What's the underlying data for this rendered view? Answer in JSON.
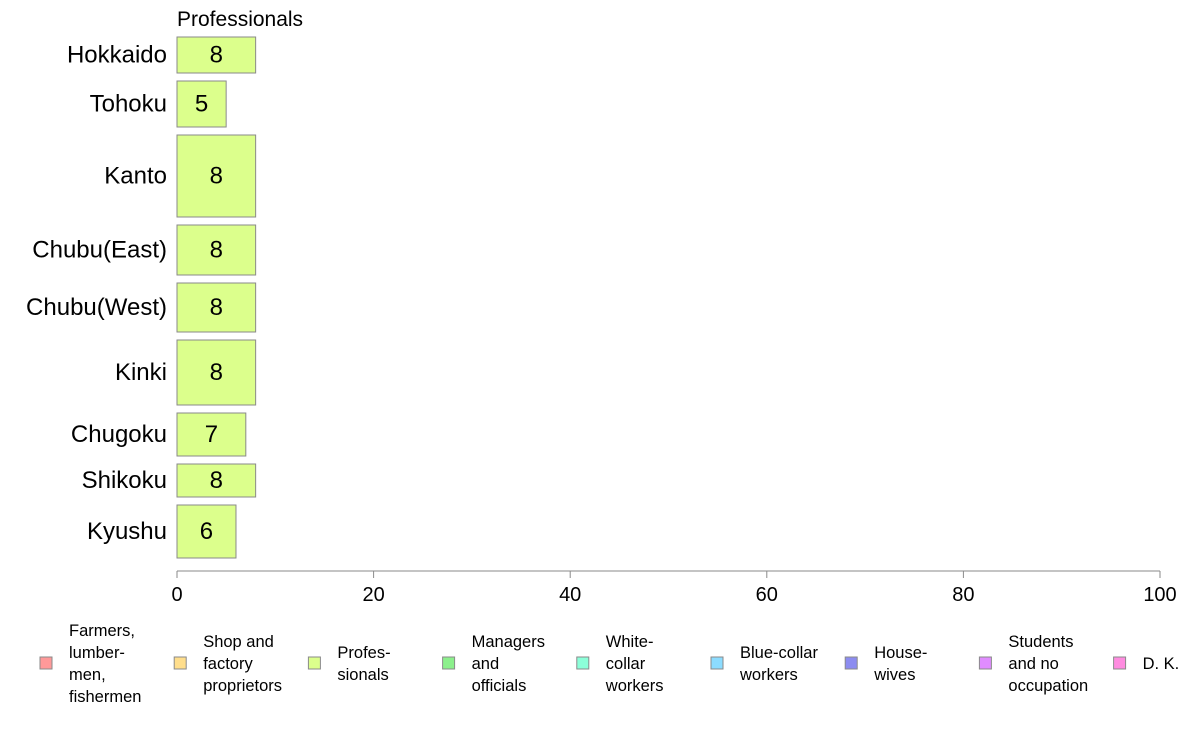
{
  "chart_data": {
    "type": "bar",
    "orientation": "horizontal",
    "title": "Professionals",
    "categories": [
      "Hokkaido",
      "Tohoku",
      "Kanto",
      "Chubu(East)",
      "Chubu(West)",
      "Kinki",
      "Chugoku",
      "Shikoku",
      "Kyushu"
    ],
    "values": [
      8,
      5,
      8,
      8,
      8,
      8,
      7,
      8,
      6
    ],
    "labels": [
      "8",
      "5",
      "8",
      "8",
      "8",
      "8",
      "7",
      "8",
      "6"
    ],
    "xlim": [
      0,
      100
    ],
    "xticks": [
      0,
      20,
      40,
      60,
      80,
      100
    ],
    "xtick_labels": [
      "0",
      "20",
      "40",
      "60",
      "80",
      "100"
    ],
    "bar_color": "#dcff8c",
    "grid": false,
    "legend_position": "bottom",
    "legend": [
      {
        "lines": [
          "Farmers,",
          "lumber-",
          "men,",
          "fishermen"
        ],
        "color": "#ff9999"
      },
      {
        "lines": [
          "Shop and",
          "factory",
          "proprietors"
        ],
        "color": "#ffde8c"
      },
      {
        "lines": [
          "Profes-",
          "sionals"
        ],
        "color": "#dcff8c"
      },
      {
        "lines": [
          "Managers",
          "and",
          "officials"
        ],
        "color": "#8cf08c"
      },
      {
        "lines": [
          "White-",
          "collar",
          "workers"
        ],
        "color": "#8cffd9"
      },
      {
        "lines": [
          "Blue-collar",
          "workers"
        ],
        "color": "#8cdcff"
      },
      {
        "lines": [
          "House-",
          "wives"
        ],
        "color": "#8c8cf0"
      },
      {
        "lines": [
          "Students",
          "and no",
          "occupation"
        ],
        "color": "#e08cff"
      },
      {
        "lines": [
          "D. K."
        ],
        "color": "#ff8ce0"
      }
    ]
  }
}
